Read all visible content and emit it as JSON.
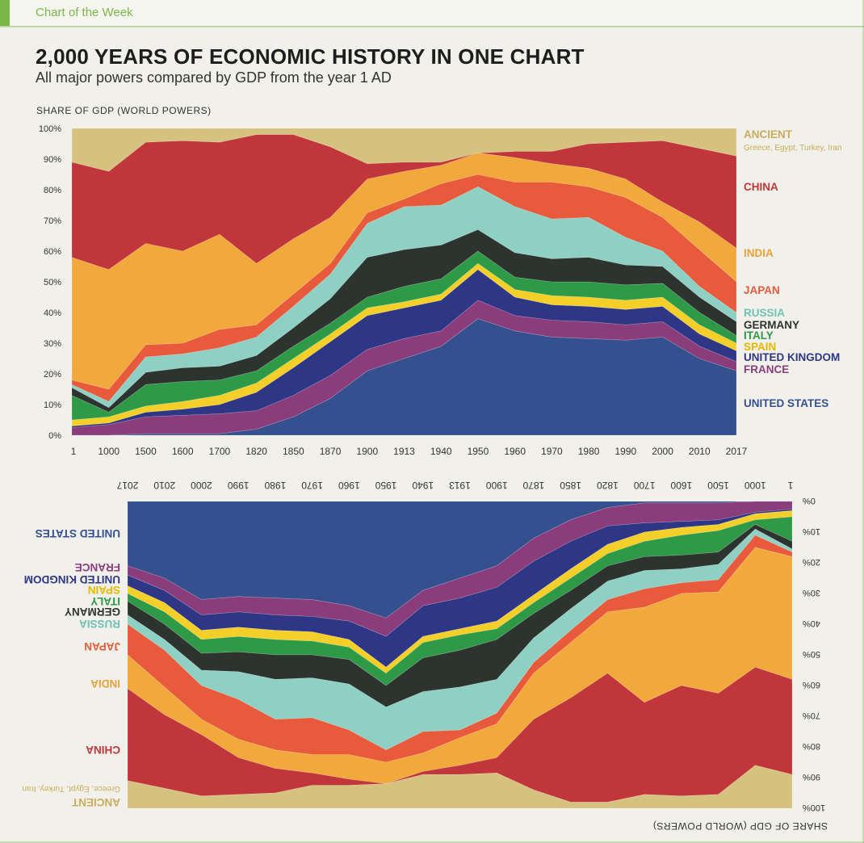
{
  "header": {
    "label": "Chart of the Week"
  },
  "title": "2,000 YEARS OF ECONOMIC HISTORY IN ONE CHART",
  "subtitle": "All major powers compared by GDP from the year 1 AD",
  "colors": {
    "ancient": "#d6c27f",
    "china": "#c1363a",
    "india": "#f2a93b",
    "japan": "#e85a3c",
    "russia": "#8ed0c3",
    "germany": "#2d332f",
    "italy": "#2e9a48",
    "spain": "#f4cf2a",
    "united_kingdom": "#2e3686",
    "france": "#8b3c7b",
    "united_states": "#35508f"
  },
  "chart_data": [
    {
      "type": "area",
      "stacked": true,
      "ylabel": "SHARE OF GDP (WORLD POWERS)",
      "ylim": [
        0,
        100
      ],
      "yticks": [
        "0%",
        "10%",
        "20%",
        "30%",
        "40%",
        "50%",
        "60%",
        "70%",
        "80%",
        "90%",
        "100%"
      ],
      "x": [
        "1",
        "1000",
        "1500",
        "1600",
        "1700",
        "1820",
        "1850",
        "1870",
        "1900",
        "1913",
        "1940",
        "1950",
        "1960",
        "1970",
        "1980",
        "1990",
        "2000",
        "2010",
        "2017"
      ],
      "series": [
        {
          "name": "UNITED STATES",
          "color": "#35508f",
          "values": [
            0,
            0,
            0.5,
            0.5,
            0.5,
            2,
            6,
            12,
            21,
            25,
            29,
            38,
            34,
            32,
            31.5,
            31,
            32,
            25,
            21
          ]
        },
        {
          "name": "FRANCE",
          "color": "#8b3c7b",
          "values": [
            2.5,
            3.5,
            5.5,
            6,
            6.5,
            6,
            7,
            7.5,
            7,
            6.5,
            5,
            6,
            5,
            5.5,
            5.5,
            5,
            5,
            4,
            3
          ]
        },
        {
          "name": "UNITED KINGDOM",
          "color": "#2e3686",
          "values": [
            0.5,
            0.5,
            1.5,
            2,
            3,
            6,
            9,
            11,
            11,
            10,
            10,
            10,
            6,
            5,
            5,
            5,
            5,
            4,
            3.5
          ]
        },
        {
          "name": "SPAIN",
          "color": "#f4cf2a",
          "values": [
            2,
            2,
            2,
            2.5,
            3,
            3,
            3,
            2.5,
            2.5,
            2,
            2,
            2,
            2.5,
            3,
            3,
            3,
            3,
            3,
            2.5
          ]
        },
        {
          "name": "ITALY",
          "color": "#2e9a48",
          "values": [
            8,
            1.5,
            7,
            6.5,
            5,
            4,
            4,
            3.5,
            3.5,
            5,
            5,
            4,
            4,
            4.5,
            5,
            5,
            4.5,
            4,
            2.5
          ]
        },
        {
          "name": "GERMANY",
          "color": "#2d332f",
          "values": [
            2.5,
            1.5,
            4,
            4.5,
            4.5,
            5,
            6,
            8,
            13,
            12,
            11,
            7,
            8,
            7.5,
            8,
            6.5,
            5.5,
            5,
            4.5
          ]
        },
        {
          "name": "RUSSIA",
          "color": "#8ed0c3",
          "values": [
            1,
            2,
            5,
            4.5,
            6,
            6,
            7,
            8,
            11,
            14,
            13,
            14,
            15,
            13,
            13,
            9,
            5,
            3.5,
            3
          ]
        },
        {
          "name": "JAPAN",
          "color": "#e85a3c",
          "values": [
            1.5,
            4,
            4,
            3.5,
            6,
            4,
            4,
            3.5,
            3.5,
            2.5,
            7,
            4,
            8,
            12,
            10,
            13,
            11,
            12,
            10
          ]
        },
        {
          "name": "INDIA",
          "color": "#f2a93b",
          "values": [
            40,
            39,
            33,
            30,
            31,
            20,
            18,
            15,
            11,
            9,
            6,
            7,
            8,
            6,
            6,
            6,
            5,
            9,
            11
          ]
        },
        {
          "name": "CHINA",
          "color": "#c1363a",
          "values": [
            31,
            32,
            33,
            36,
            30,
            42,
            34,
            23,
            5,
            3,
            1,
            0,
            2,
            4,
            8,
            12,
            20,
            24,
            30
          ]
        },
        {
          "name": "ANCIENT",
          "color": "#d6c27f",
          "values": [
            11,
            14,
            4.5,
            4,
            4,
            2,
            2,
            2.5,
            2,
            3,
            3,
            8,
            7.5,
            7.5,
            5,
            4.5,
            4,
            6.5,
            9
          ]
        }
      ],
      "labels": [
        {
          "name": "ANCIENT",
          "note": "Greece, Egypt, Turkey, Iran"
        },
        {
          "name": "CHINA"
        },
        {
          "name": "INDIA"
        },
        {
          "name": "JAPAN"
        },
        {
          "name": "RUSSIA"
        },
        {
          "name": "GERMANY"
        },
        {
          "name": "ITALY"
        },
        {
          "name": "SPAIN"
        },
        {
          "name": "UNITED KINGDOM"
        },
        {
          "name": "FRANCE"
        },
        {
          "name": "UNITED STATES"
        }
      ]
    },
    {
      "type": "area",
      "stacked": true,
      "rotated": "180deg",
      "ylabel": "SHARE OF GDP (WORLD POWERS)",
      "ylim": [
        0,
        100
      ],
      "yticks": [
        "0%",
        "10%",
        "20%",
        "30%",
        "40%",
        "50%",
        "60%",
        "70%",
        "80%",
        "90%",
        "100%"
      ],
      "x": [
        "1",
        "1000",
        "1500",
        "1600",
        "1700",
        "1820",
        "1850",
        "1870",
        "1900",
        "1913",
        "1940",
        "1950",
        "1960",
        "1970",
        "1980",
        "1990",
        "2000",
        "2010",
        "2017"
      ],
      "series": [
        {
          "name": "UNITED STATES",
          "color": "#35508f",
          "values": [
            0,
            0,
            0.5,
            0.5,
            0.5,
            2,
            6,
            12,
            21,
            25,
            29,
            38,
            34,
            32,
            31.5,
            31,
            32,
            25,
            21
          ]
        },
        {
          "name": "FRANCE",
          "color": "#8b3c7b",
          "values": [
            2.5,
            3.5,
            5.5,
            6,
            6.5,
            6,
            7,
            7.5,
            7,
            6.5,
            5,
            6,
            5,
            5.5,
            5.5,
            5,
            5,
            4,
            3
          ]
        },
        {
          "name": "UNITED KINGDOM",
          "color": "#2e3686",
          "values": [
            0.5,
            0.5,
            1.5,
            2,
            3,
            6,
            9,
            11,
            11,
            10,
            10,
            10,
            6,
            5,
            5,
            5,
            5,
            4,
            3.5
          ]
        },
        {
          "name": "SPAIN",
          "color": "#f4cf2a",
          "values": [
            2,
            2,
            2,
            2.5,
            3,
            3,
            3,
            2.5,
            2.5,
            2,
            2,
            2,
            2.5,
            3,
            3,
            3,
            3,
            3,
            2.5
          ]
        },
        {
          "name": "ITALY",
          "color": "#2e9a48",
          "values": [
            8,
            1.5,
            7,
            6.5,
            5,
            4,
            4,
            3.5,
            3.5,
            5,
            5,
            4,
            4,
            4.5,
            5,
            5,
            4.5,
            4,
            2.5
          ]
        },
        {
          "name": "GERMANY",
          "color": "#2d332f",
          "values": [
            2.5,
            1.5,
            4,
            4.5,
            4.5,
            5,
            6,
            8,
            13,
            12,
            11,
            7,
            8,
            7.5,
            8,
            6.5,
            5.5,
            5,
            4.5
          ]
        },
        {
          "name": "RUSSIA",
          "color": "#8ed0c3",
          "values": [
            1,
            2,
            5,
            4.5,
            6,
            6,
            7,
            8,
            11,
            14,
            13,
            14,
            15,
            13,
            13,
            9,
            5,
            3.5,
            3
          ]
        },
        {
          "name": "JAPAN",
          "color": "#e85a3c",
          "values": [
            1.5,
            4,
            4,
            3.5,
            6,
            4,
            4,
            3.5,
            3.5,
            2.5,
            7,
            4,
            8,
            12,
            10,
            13,
            11,
            12,
            10
          ]
        },
        {
          "name": "INDIA",
          "color": "#f2a93b",
          "values": [
            40,
            39,
            33,
            30,
            31,
            20,
            18,
            15,
            11,
            9,
            6,
            7,
            8,
            6,
            6,
            6,
            5,
            9,
            11
          ]
        },
        {
          "name": "CHINA",
          "color": "#c1363a",
          "values": [
            31,
            32,
            33,
            36,
            30,
            42,
            34,
            23,
            5,
            3,
            1,
            0,
            2,
            4,
            8,
            12,
            20,
            24,
            30
          ]
        },
        {
          "name": "ANCIENT",
          "color": "#d6c27f",
          "values": [
            11,
            14,
            4.5,
            4,
            4,
            2,
            2,
            2.5,
            2,
            3,
            3,
            8,
            7.5,
            7.5,
            5,
            4.5,
            4,
            6.5,
            9
          ]
        }
      ],
      "labels": [
        {
          "name": "ANCIENT",
          "note": "Greece, Egypt, Turkey, Iran"
        },
        {
          "name": "CHINA"
        },
        {
          "name": "INDIA"
        },
        {
          "name": "JAPAN"
        },
        {
          "name": "RUSSIA"
        },
        {
          "name": "GERMANY"
        },
        {
          "name": "ITALY"
        },
        {
          "name": "SPAIN"
        },
        {
          "name": "UNITED KINGDOM"
        },
        {
          "name": "FRANCE"
        },
        {
          "name": "UNITED STATES"
        }
      ]
    }
  ]
}
